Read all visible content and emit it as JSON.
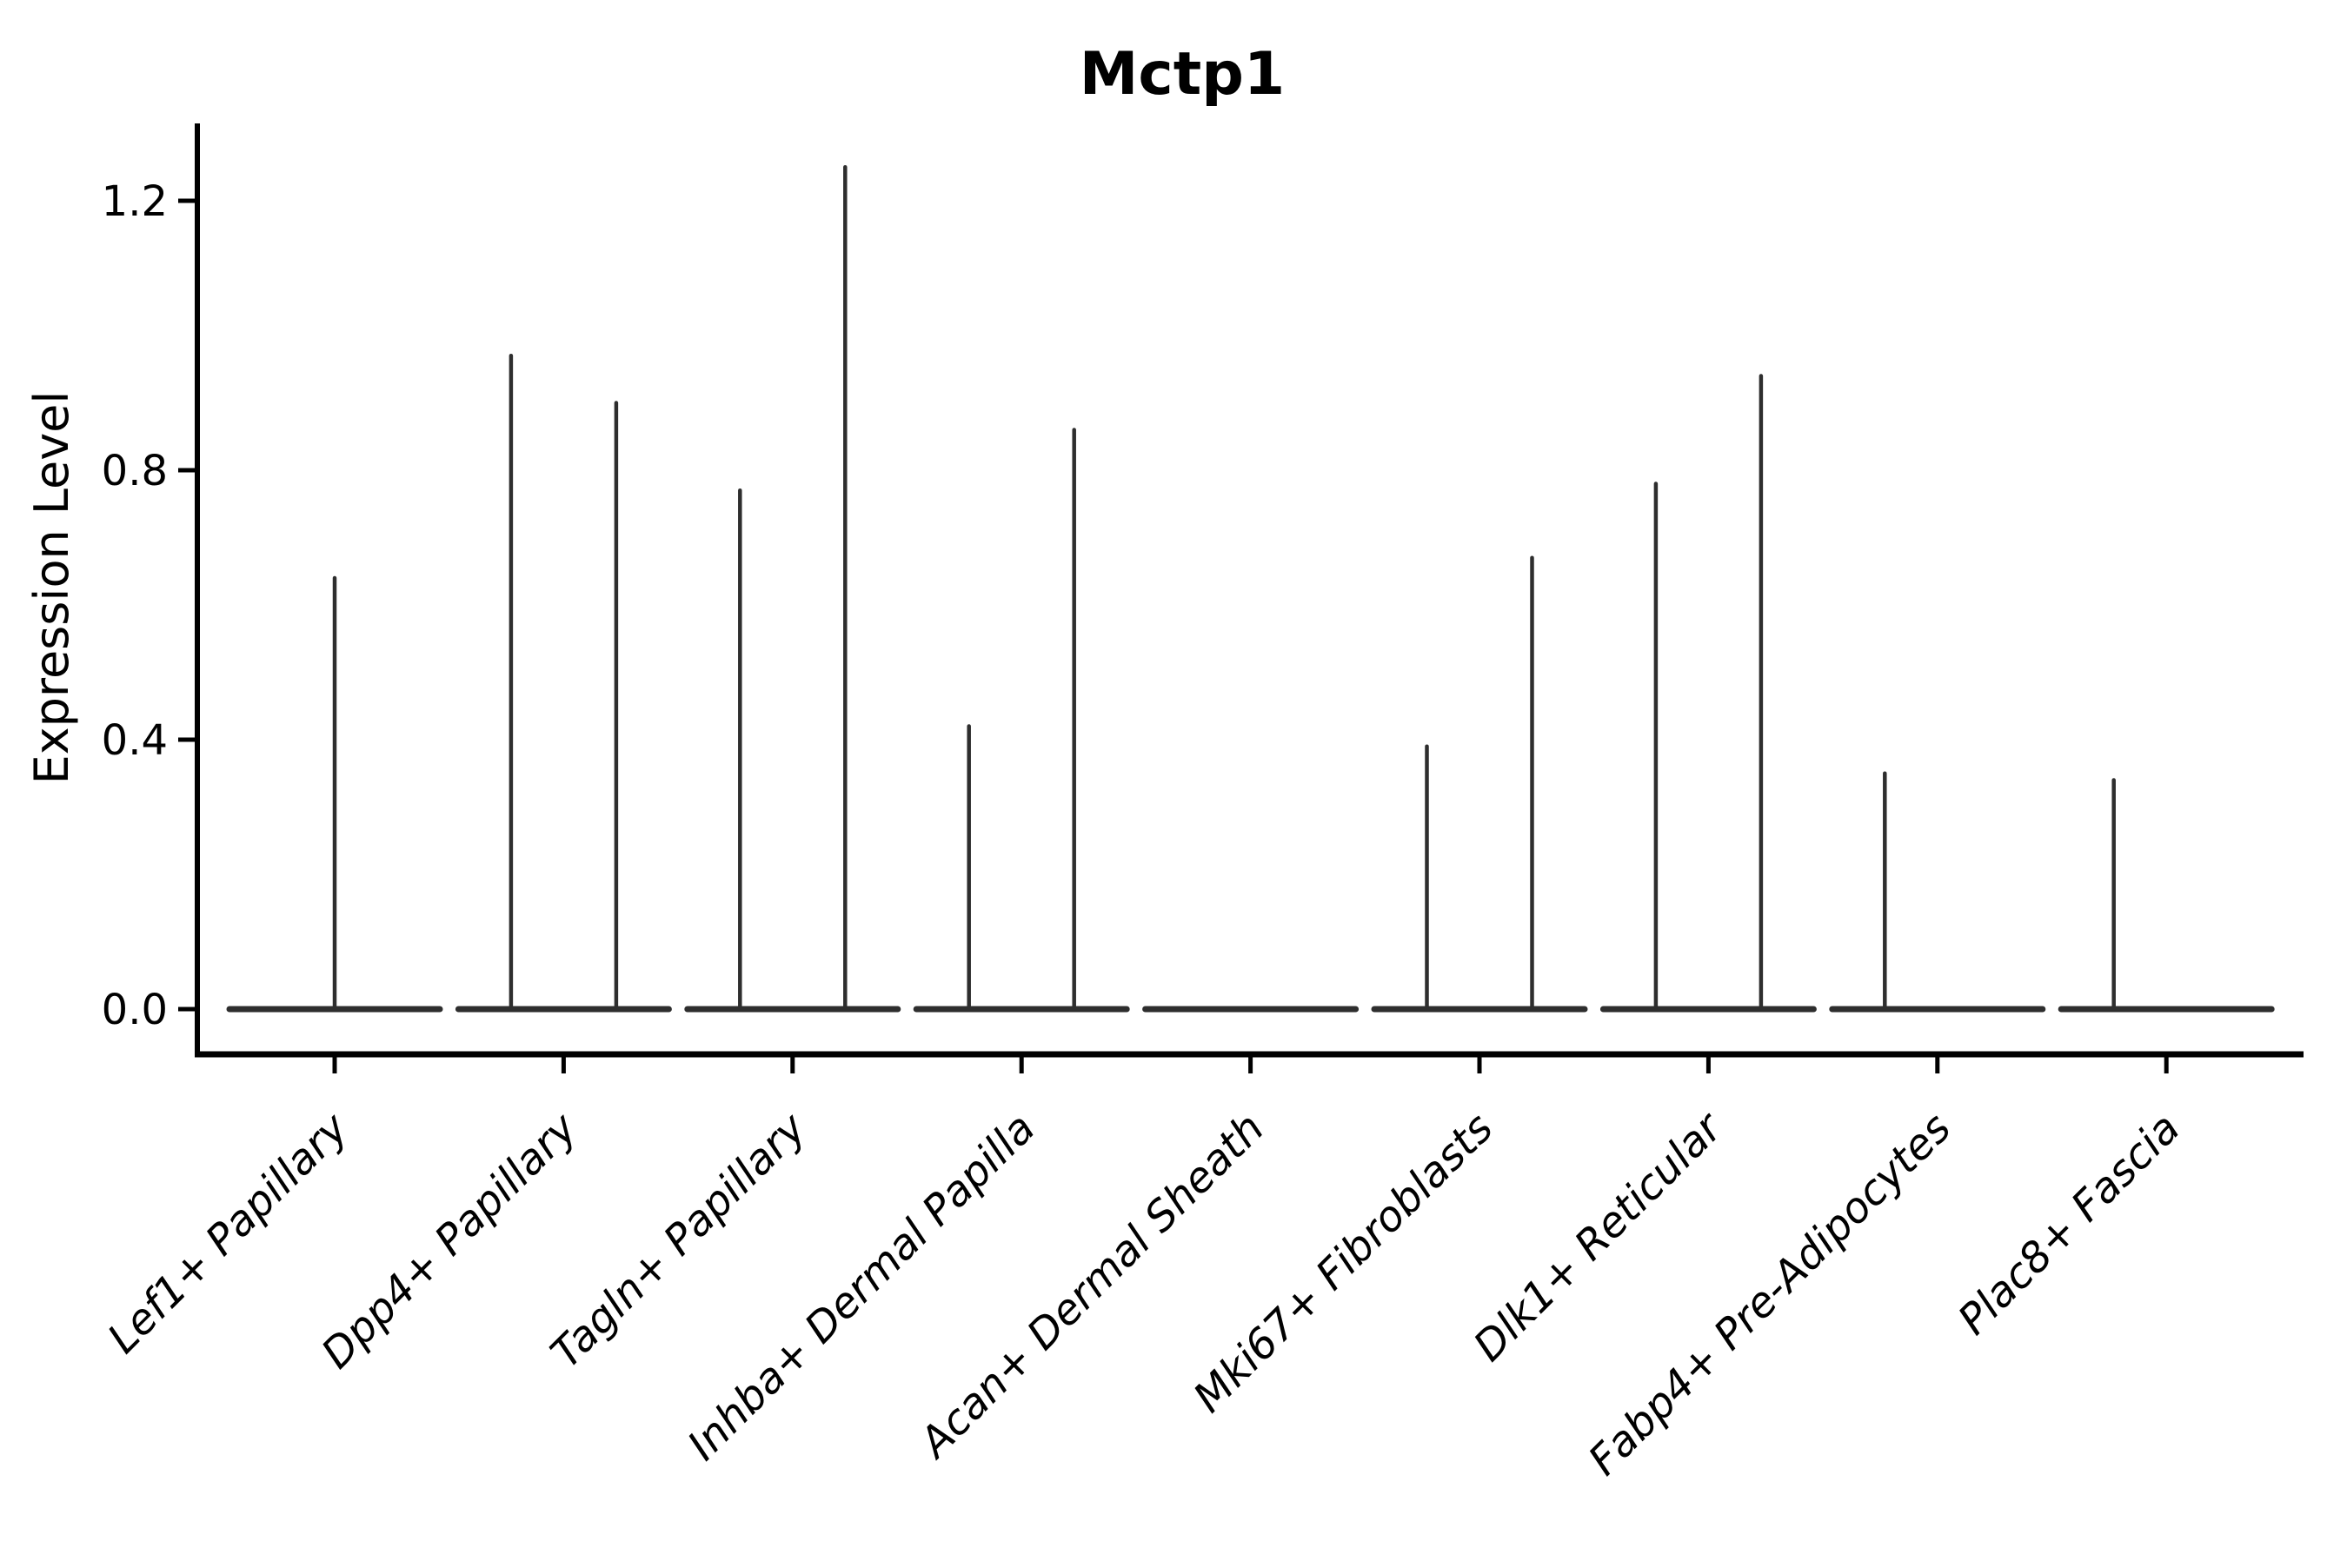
{
  "page": {
    "background": "#ffffff"
  },
  "chart_data": {
    "type": "violin",
    "title": "Mctp1",
    "xlabel": "",
    "ylabel": "Expression Level",
    "ytick_labels": [
      "0.0",
      "0.4",
      "0.8",
      "1.2"
    ],
    "ytick_values": [
      0.0,
      0.4,
      0.8,
      1.2
    ],
    "ylim": [
      -0.07,
      1.32
    ],
    "grid": "off",
    "legend": "none",
    "categories": [
      "Lef1+ Papillary",
      "Dpp4+ Papillary",
      "Tagln+ Papillary",
      "Inhba+ Dermal Papilla",
      "Acan+ Dermal Sheath",
      "Mki67+ Fibroblasts",
      "Dlk1+ Reticular",
      "Fabp4+ Pre-Adipocytes",
      "Plac8+ Fascia"
    ],
    "violins": [
      {
        "category": "Lef1+ Papillary",
        "base_at_zero": true,
        "spikes": [
          {
            "pos": "center",
            "max": 0.64
          }
        ]
      },
      {
        "category": "Dpp4+ Papillary",
        "base_at_zero": true,
        "spikes": [
          {
            "pos": "left",
            "max": 0.97
          },
          {
            "pos": "right",
            "max": 0.9
          }
        ]
      },
      {
        "category": "Tagln+ Papillary",
        "base_at_zero": true,
        "spikes": [
          {
            "pos": "left",
            "max": 0.77
          },
          {
            "pos": "right",
            "max": 1.25
          }
        ]
      },
      {
        "category": "Inhba+ Dermal Papilla",
        "base_at_zero": true,
        "spikes": [
          {
            "pos": "left",
            "max": 0.42
          },
          {
            "pos": "right",
            "max": 0.86
          }
        ]
      },
      {
        "category": "Acan+ Dermal Sheath",
        "base_at_zero": true,
        "spikes": []
      },
      {
        "category": "Mki67+ Fibroblasts",
        "base_at_zero": true,
        "spikes": [
          {
            "pos": "left",
            "max": 0.39
          },
          {
            "pos": "right",
            "max": 0.67
          }
        ]
      },
      {
        "category": "Dlk1+ Reticular",
        "base_at_zero": true,
        "spikes": [
          {
            "pos": "left",
            "max": 0.78
          },
          {
            "pos": "right",
            "max": 0.94
          }
        ]
      },
      {
        "category": "Fabp4+ Pre-Adipocytes",
        "base_at_zero": true,
        "spikes": [
          {
            "pos": "left",
            "max": 0.35
          }
        ]
      },
      {
        "category": "Plac8+ Fascia",
        "base_at_zero": true,
        "spikes": [
          {
            "pos": "left",
            "max": 0.34
          }
        ]
      }
    ],
    "colors": {
      "violin": "#2e2e2e",
      "axis": "#000000",
      "text": "#000000",
      "background": "#ffffff"
    }
  }
}
